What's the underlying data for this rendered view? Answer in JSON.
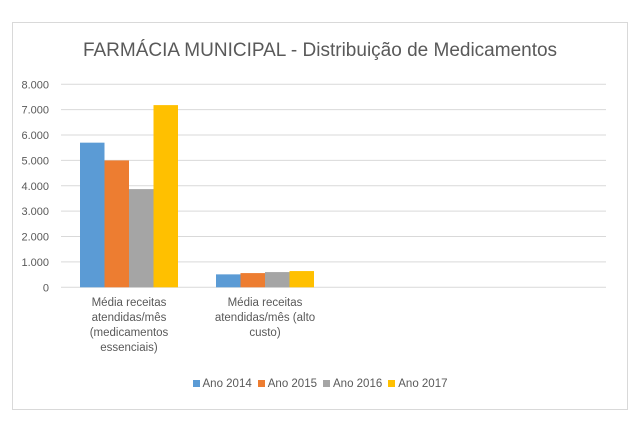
{
  "chart_data": {
    "type": "bar",
    "title": "FARMÁCIA MUNICIPAL - Distribuição de Medicamentos",
    "categories": [
      "Média receitas atendidas/mês (medicamentos essenciais)",
      "Média receitas atendidas/mês (alto custo)"
    ],
    "series": [
      {
        "name": "Ano 2014",
        "color": "#5b9bd5",
        "values": [
          5700,
          510
        ]
      },
      {
        "name": "Ano 2015",
        "color": "#ed7d31",
        "values": [
          5000,
          560
        ]
      },
      {
        "name": "Ano 2016",
        "color": "#a5a5a5",
        "values": [
          3870,
          600
        ]
      },
      {
        "name": "Ano 2017",
        "color": "#ffc000",
        "values": [
          7180,
          640
        ]
      }
    ],
    "ylim": [
      0,
      8000
    ],
    "yticks": [
      "0",
      "1.000",
      "2.000",
      "3.000",
      "4.000",
      "5.000",
      "6.000",
      "7.000",
      "8.000"
    ],
    "grid": true,
    "legend": "bottom"
  }
}
